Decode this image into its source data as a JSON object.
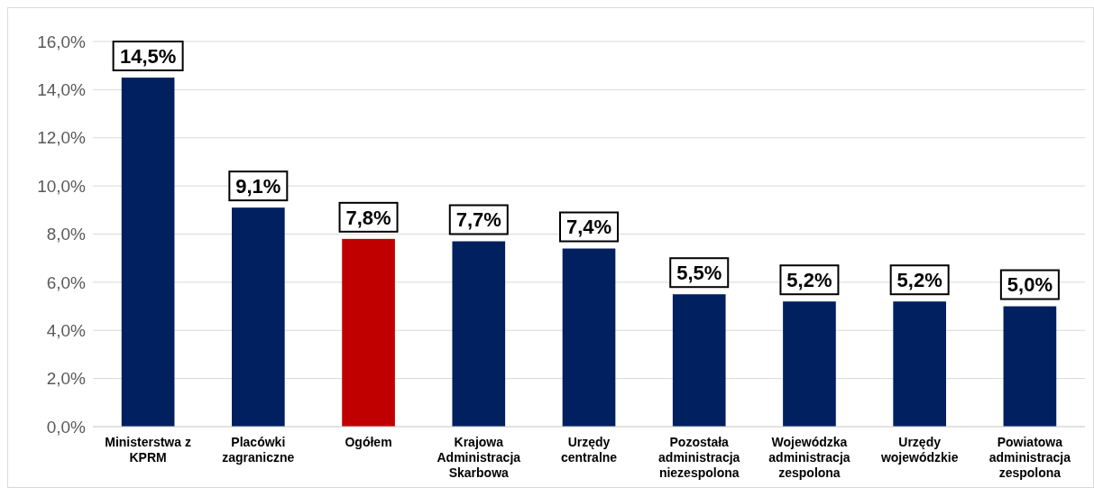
{
  "chart_data": {
    "type": "bar",
    "categories": [
      "Ministerstwa z KPRM",
      "Placówki zagraniczne",
      "Ogółem",
      "Krajowa Administracja Skarbowa",
      "Urzędy centralne",
      "Pozostała administracja niezespolona",
      "Wojewódzka administracja zespolona",
      "Urzędy wojewódzkie",
      "Powiatowa administracja zespolona"
    ],
    "values": [
      14.5,
      9.1,
      7.8,
      7.7,
      7.4,
      5.5,
      5.2,
      5.2,
      5.0
    ],
    "colors": [
      "#002060",
      "#002060",
      "#c00000",
      "#002060",
      "#002060",
      "#002060",
      "#002060",
      "#002060",
      "#002060"
    ],
    "value_labels": [
      "14,5%",
      "9,1%",
      "7,8%",
      "7,7%",
      "7,4%",
      "5,5%",
      "5,2%",
      "5,2%",
      "5,0%"
    ],
    "ylim": [
      0,
      16
    ],
    "yticks": [
      {
        "value": 0,
        "label": "0,0%"
      },
      {
        "value": 2,
        "label": "2,0%"
      },
      {
        "value": 4,
        "label": "4,0%"
      },
      {
        "value": 6,
        "label": "6,0%"
      },
      {
        "value": 8,
        "label": "8,0%"
      },
      {
        "value": 10,
        "label": "10,0%"
      },
      {
        "value": 12,
        "label": "12,0%"
      },
      {
        "value": 14,
        "label": "14,0%"
      },
      {
        "value": 16,
        "label": "16,0%"
      }
    ],
    "grid": "y"
  }
}
